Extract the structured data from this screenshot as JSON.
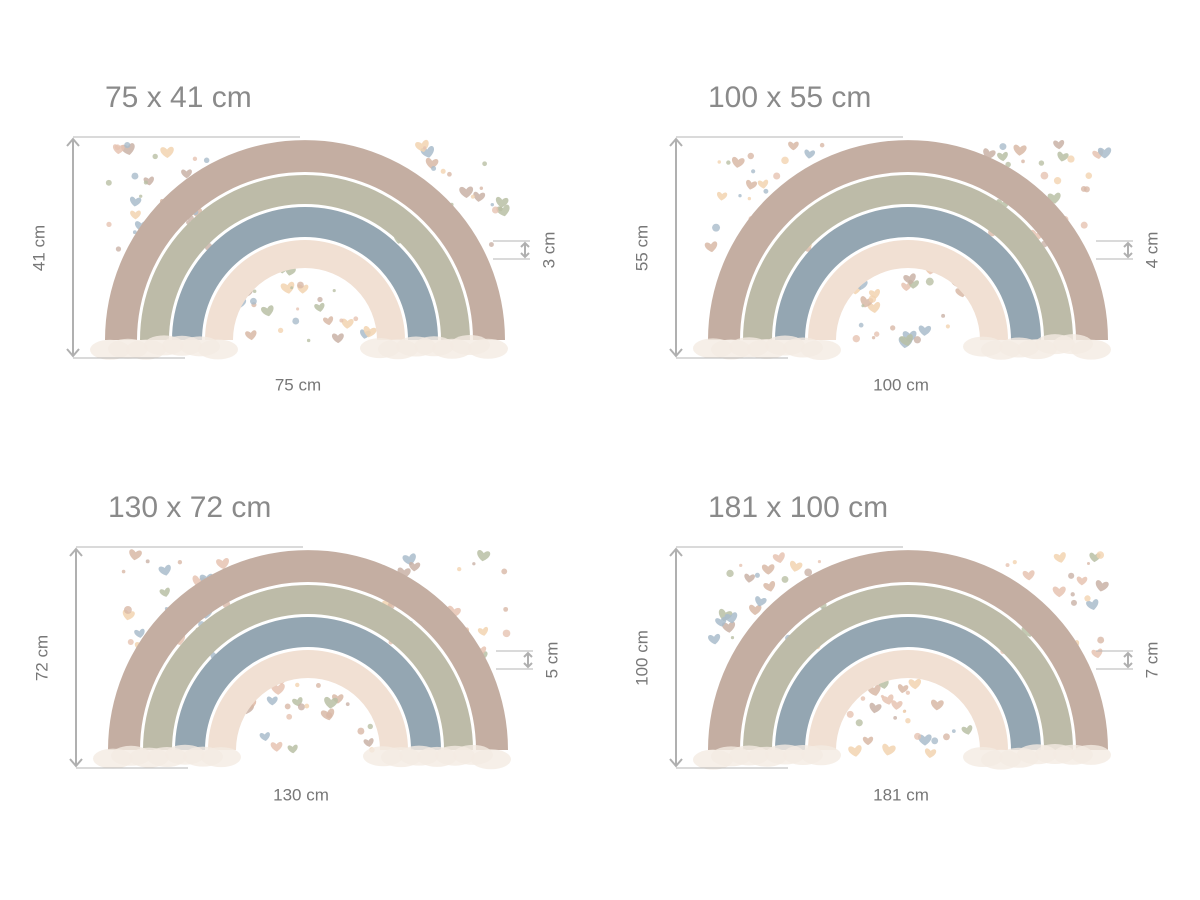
{
  "panels": [
    {
      "title": "75 x 41 cm",
      "height_label": "41 cm",
      "width_label": "75 cm",
      "heart_label": "3 cm"
    },
    {
      "title": "100 x 55 cm",
      "height_label": "55 cm",
      "width_label": "100 cm",
      "heart_label": "4 cm"
    },
    {
      "title": "130 x 72 cm",
      "height_label": "72 cm",
      "width_label": "130 cm",
      "heart_label": "5 cm"
    },
    {
      "title": "181 x 100 cm",
      "height_label": "100 cm",
      "width_label": "181 cm",
      "heart_label": "7 cm"
    }
  ]
}
